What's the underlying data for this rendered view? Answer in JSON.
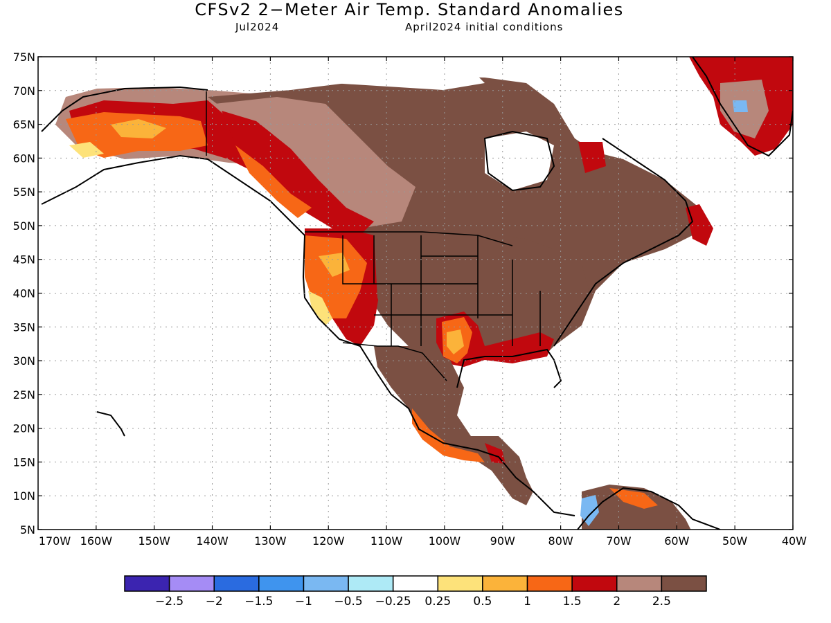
{
  "header": {
    "title": "CFSv2 2−Meter Air Temp. Standard Anomalies",
    "valid_month": "Jul2024",
    "init_conditions": "April2024 initial conditions"
  },
  "map": {
    "lat_labels": [
      "75N",
      "70N",
      "65N",
      "60N",
      "55N",
      "50N",
      "45N",
      "40N",
      "35N",
      "30N",
      "25N",
      "20N",
      "15N",
      "10N",
      "5N"
    ],
    "lon_labels": [
      "170W",
      "160W",
      "150W",
      "140W",
      "130W",
      "120W",
      "110W",
      "100W",
      "90W",
      "80W",
      "70W",
      "60W",
      "50W",
      "40W"
    ]
  },
  "colorbar": {
    "colors": [
      "#3b24b0",
      "#a58cf5",
      "#2a6be0",
      "#3f94ee",
      "#7ab8f2",
      "#aeeaf6",
      "#ffffff",
      "#fde27a",
      "#fbb33a",
      "#f76716",
      "#c1080e",
      "#b7877b",
      "#7b5043"
    ],
    "labels": [
      "−2.5",
      "−2",
      "−1.5",
      "−1",
      "−0.5",
      "−0.25",
      "0.25",
      "0.5",
      "1",
      "1.5",
      "2",
      "2.5"
    ]
  }
}
